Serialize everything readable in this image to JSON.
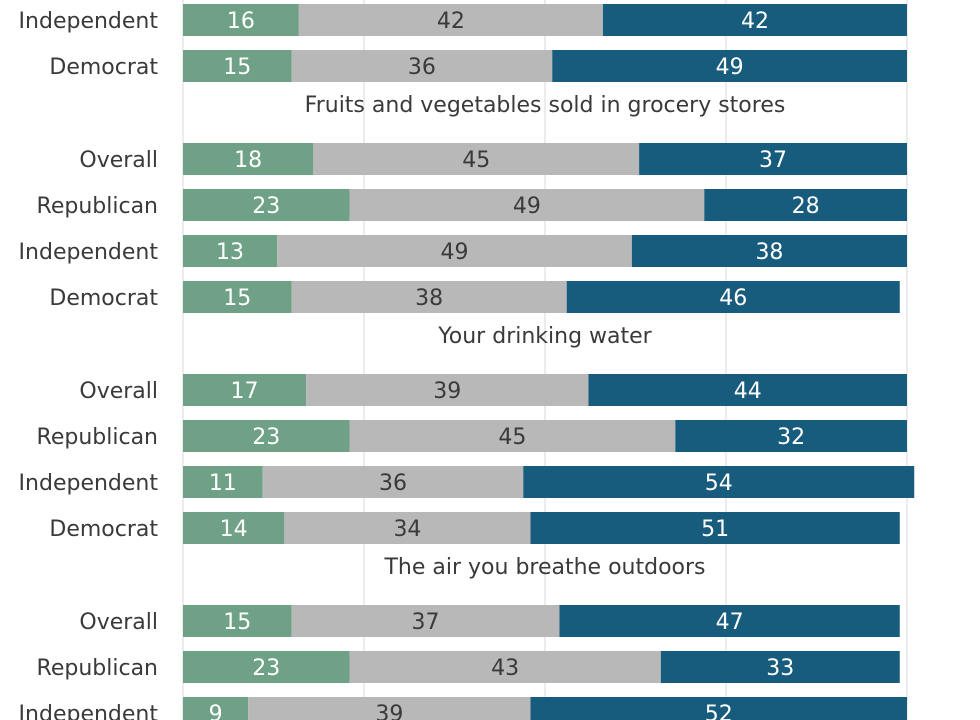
{
  "colors": {
    "green": "#6fa186",
    "gray": "#b8b8b8",
    "blue": "#185c7d",
    "grid": "#d9d9d9",
    "text_light": "#ffffff",
    "text_dark": "#3a3a3a"
  },
  "chart_data": {
    "type": "bar",
    "orientation": "horizontal",
    "stacked": true,
    "percent_scale": [
      0,
      100
    ],
    "grid": true,
    "series_colors": [
      "#6fa186",
      "#b8b8b8",
      "#185c7d"
    ],
    "groups": [
      {
        "title": "",
        "rows": [
          {
            "label": "Independent",
            "values": [
              16,
              42,
              42
            ]
          },
          {
            "label": "Democrat",
            "values": [
              15,
              36,
              49
            ]
          }
        ]
      },
      {
        "title": "Fruits and vegetables  sold in grocery stores",
        "rows": [
          {
            "label": "Overall",
            "values": [
              18,
              45,
              37
            ]
          },
          {
            "label": "Republican",
            "values": [
              23,
              49,
              28
            ]
          },
          {
            "label": "Independent",
            "values": [
              13,
              49,
              38
            ]
          },
          {
            "label": "Democrat",
            "values": [
              15,
              38,
              46
            ]
          }
        ]
      },
      {
        "title": "Your drinking water",
        "rows": [
          {
            "label": "Overall",
            "values": [
              17,
              39,
              44
            ]
          },
          {
            "label": "Republican",
            "values": [
              23,
              45,
              32
            ]
          },
          {
            "label": "Independent",
            "values": [
              11,
              36,
              54
            ]
          },
          {
            "label": "Democrat",
            "values": [
              14,
              34,
              51
            ]
          }
        ]
      },
      {
        "title": "The air you breathe outdoors",
        "rows": [
          {
            "label": "Overall",
            "values": [
              15,
              37,
              47
            ]
          },
          {
            "label": "Republican",
            "values": [
              23,
              43,
              33
            ]
          },
          {
            "label": "Independent",
            "values": [
              9,
              39,
              52
            ]
          }
        ]
      }
    ]
  }
}
